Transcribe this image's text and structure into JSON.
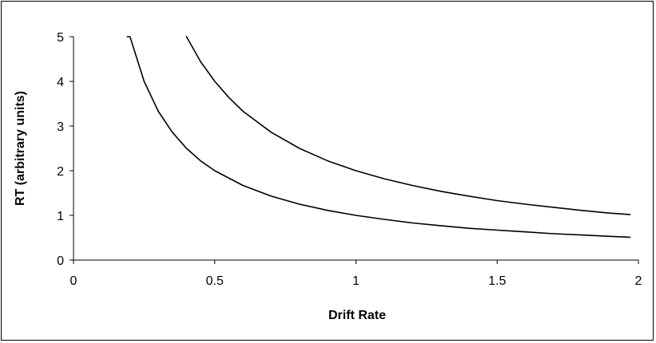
{
  "chart_data": {
    "type": "line",
    "title": "",
    "xlabel": "Drift Rate",
    "ylabel": "RT (arbitrary units)",
    "xlim": [
      0,
      2
    ],
    "ylim": [
      0,
      5
    ],
    "x_ticks": [
      "0",
      "0.5",
      "1",
      "1.5",
      "2"
    ],
    "y_ticks": [
      "0",
      "1",
      "2",
      "3",
      "4",
      "5"
    ],
    "grid": false,
    "legend": "none",
    "line_color": "#000000",
    "series": [
      {
        "x": [
          0.19,
          0.2,
          0.25,
          0.3,
          0.35,
          0.4,
          0.45,
          0.5,
          0.6,
          0.7,
          0.8,
          0.9,
          1.0,
          1.1,
          1.2,
          1.3,
          1.4,
          1.5,
          1.6,
          1.7,
          1.8,
          1.9,
          1.97
        ],
        "y": [
          5.0,
          5.0,
          4.0,
          3.33,
          2.86,
          2.5,
          2.22,
          2.0,
          1.67,
          1.43,
          1.25,
          1.11,
          1.0,
          0.91,
          0.83,
          0.77,
          0.71,
          0.67,
          0.63,
          0.59,
          0.56,
          0.53,
          0.51
        ]
      },
      {
        "x": [
          0.4,
          0.45,
          0.5,
          0.55,
          0.6,
          0.7,
          0.8,
          0.9,
          1.0,
          1.1,
          1.2,
          1.3,
          1.4,
          1.5,
          1.6,
          1.7,
          1.8,
          1.9,
          1.97
        ],
        "y": [
          5.0,
          4.44,
          4.0,
          3.64,
          3.33,
          2.86,
          2.5,
          2.22,
          2.0,
          1.82,
          1.67,
          1.54,
          1.43,
          1.33,
          1.25,
          1.18,
          1.11,
          1.05,
          1.02
        ]
      }
    ]
  }
}
